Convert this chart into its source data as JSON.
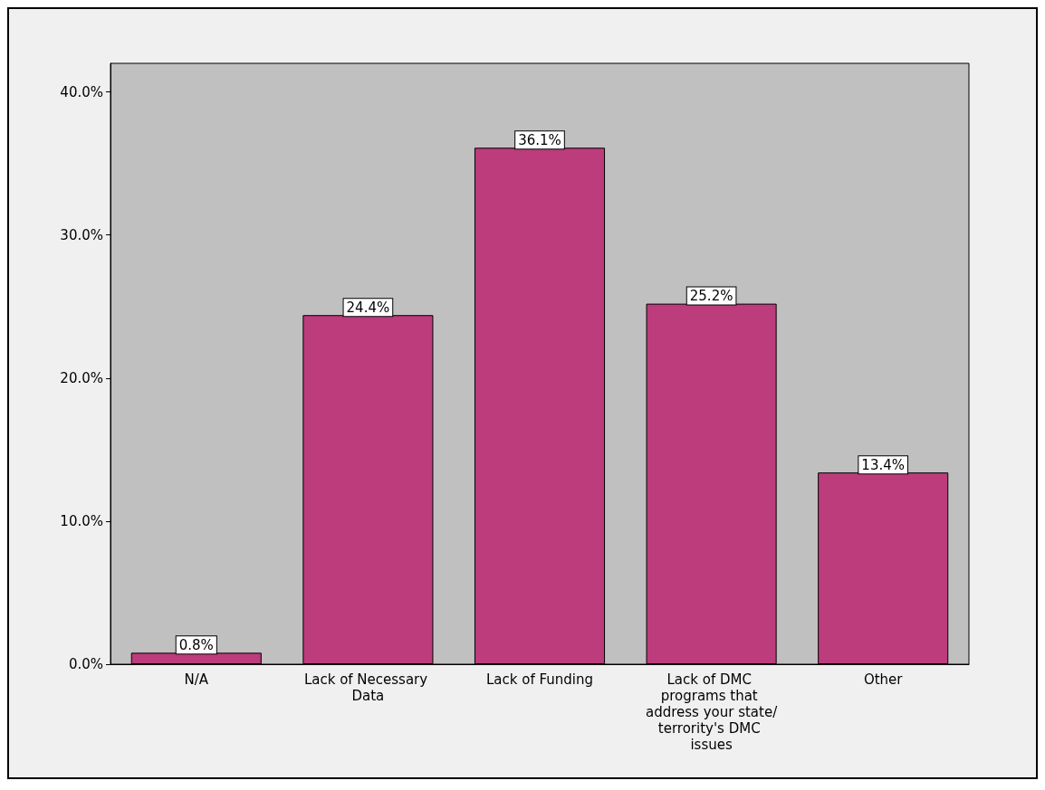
{
  "chart_data": {
    "type": "bar",
    "categories": [
      "N/A",
      "Lack of Necessary Data",
      "Lack of Funding",
      "Lack of DMC programs that address your state/terrority's DMC issues",
      "Other"
    ],
    "values": [
      0.8,
      24.4,
      36.1,
      25.2,
      13.4
    ],
    "value_labels": [
      "0.8%",
      "24.4%",
      "36.1%",
      "25.2%",
      "13.4%"
    ],
    "color": "#bc3c7c",
    "ylim": [
      0,
      42
    ],
    "yticks": [
      {
        "value": 0,
        "label": "0.0%"
      },
      {
        "value": 10,
        "label": "10.0%"
      },
      {
        "value": 20,
        "label": "20.0%"
      },
      {
        "value": 30,
        "label": "30.0%"
      },
      {
        "value": 40,
        "label": "40.0%"
      }
    ],
    "grid": false
  }
}
